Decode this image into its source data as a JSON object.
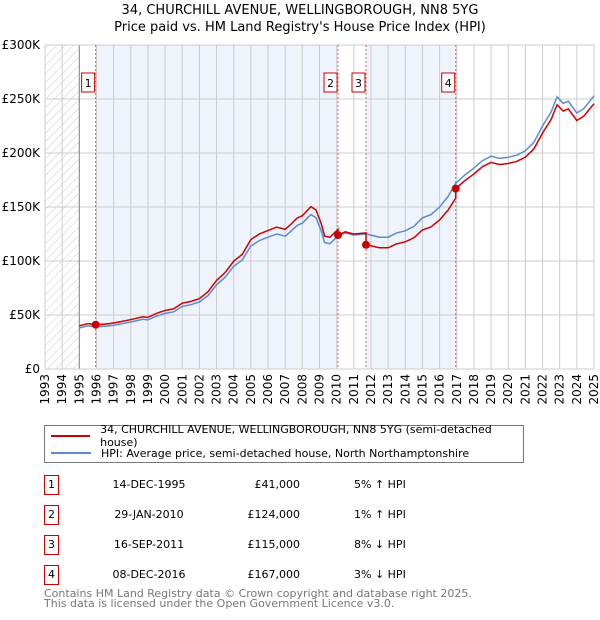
{
  "chart_data": {
    "type": "line",
    "title": "34, CHURCHILL AVENUE, WELLINGBOROUGH, NN8 5YG",
    "subtitle": "Price paid vs. HM Land Registry's House Price Index (HPI)",
    "xlim": [
      1993,
      2025
    ],
    "ylim": [
      0,
      300000
    ],
    "x_ticks": [
      "1993",
      "1994",
      "1995",
      "1996",
      "1997",
      "1998",
      "1999",
      "2000",
      "2001",
      "2002",
      "2003",
      "2004",
      "2005",
      "2006",
      "2007",
      "2008",
      "2009",
      "2010",
      "2011",
      "2012",
      "2013",
      "2014",
      "2015",
      "2016",
      "2017",
      "2018",
      "2019",
      "2020",
      "2021",
      "2022",
      "2023",
      "2024",
      "2025"
    ],
    "y_ticks": [
      {
        "v": 0,
        "label": "£0"
      },
      {
        "v": 50000,
        "label": "£50K"
      },
      {
        "v": 100000,
        "label": "£100K"
      },
      {
        "v": 150000,
        "label": "£150K"
      },
      {
        "v": 200000,
        "label": "£200K"
      },
      {
        "v": 250000,
        "label": "£250K"
      },
      {
        "v": 300000,
        "label": "£300K"
      }
    ],
    "grid": true,
    "hatched_range": [
      1993,
      1995
    ],
    "shaded_ranges": [
      [
        1995.95,
        2010.08
      ],
      [
        2011.71,
        2016.94
      ]
    ],
    "colors": {
      "property": "#cc0000",
      "hpi": "#5b8bd0",
      "shade": "#eef3fc"
    },
    "series": [
      {
        "name": "HPI: Average price, semi-detached house, North Northamptonshire",
        "color": "#5b8bd0",
        "points": [
          [
            1995,
            38000
          ],
          [
            1995.5,
            40000
          ],
          [
            1995.95,
            39000
          ],
          [
            1996.5,
            39500
          ],
          [
            1997,
            40500
          ],
          [
            1997.5,
            42000
          ],
          [
            1998,
            43500
          ],
          [
            1998.7,
            46000
          ],
          [
            1999,
            45500
          ],
          [
            1999.5,
            49000
          ],
          [
            2000,
            51500
          ],
          [
            2000.5,
            53000
          ],
          [
            2001,
            58000
          ],
          [
            2001.5,
            59500
          ],
          [
            2002,
            62000
          ],
          [
            2002.5,
            68000
          ],
          [
            2003,
            78000
          ],
          [
            2003.5,
            85000
          ],
          [
            2004,
            95000
          ],
          [
            2004.5,
            101000
          ],
          [
            2005,
            114000
          ],
          [
            2005.5,
            119000
          ],
          [
            2006,
            122000
          ],
          [
            2006.5,
            125000
          ],
          [
            2007,
            123000
          ],
          [
            2007.3,
            127000
          ],
          [
            2007.7,
            133000
          ],
          [
            2008,
            135000
          ],
          [
            2008.5,
            143000
          ],
          [
            2008.8,
            140000
          ],
          [
            2009.1,
            128000
          ],
          [
            2009.3,
            117000
          ],
          [
            2009.6,
            116000
          ],
          [
            2010.08,
            123000
          ],
          [
            2010.5,
            126000
          ],
          [
            2011,
            124000
          ],
          [
            2011.71,
            125000
          ],
          [
            2012,
            124000
          ],
          [
            2012.5,
            122000
          ],
          [
            2013,
            122000
          ],
          [
            2013.5,
            126000
          ],
          [
            2014,
            128000
          ],
          [
            2014.5,
            132000
          ],
          [
            2015,
            140000
          ],
          [
            2015.5,
            143000
          ],
          [
            2016,
            150000
          ],
          [
            2016.5,
            160000
          ],
          [
            2016.94,
            172000
          ],
          [
            2017.5,
            180000
          ],
          [
            2018,
            186000
          ],
          [
            2018.5,
            193000
          ],
          [
            2019,
            197000
          ],
          [
            2019.5,
            195000
          ],
          [
            2020,
            196000
          ],
          [
            2020.5,
            198000
          ],
          [
            2021,
            202000
          ],
          [
            2021.5,
            210000
          ],
          [
            2022,
            225000
          ],
          [
            2022.5,
            238000
          ],
          [
            2022.85,
            252000
          ],
          [
            2023.2,
            246000
          ],
          [
            2023.5,
            248000
          ],
          [
            2024,
            237000
          ],
          [
            2024.4,
            241000
          ],
          [
            2025,
            253000
          ]
        ]
      },
      {
        "name": "34, CHURCHILL AVENUE, WELLINGBOROUGH, NN8 5YG (semi-detached house)",
        "color": "#cc0000",
        "derived_from": "hpi indexed to sale prices"
      }
    ],
    "sales": [
      {
        "n": "1",
        "date": "14-DEC-1995",
        "x": 1995.95,
        "price": 41000,
        "price_label": "£41,000",
        "hpi": "5% ↑ HPI"
      },
      {
        "n": "2",
        "date": "29-JAN-2010",
        "x": 2010.08,
        "price": 124000,
        "price_label": "£124,000",
        "hpi": "1% ↑ HPI"
      },
      {
        "n": "3",
        "date": "16-SEP-2011",
        "x": 2011.71,
        "price": 115000,
        "price_label": "£115,000",
        "hpi": "8% ↓ HPI"
      },
      {
        "n": "4",
        "date": "08-DEC-2016",
        "x": 2016.94,
        "price": 167000,
        "price_label": "£167,000",
        "hpi": "3% ↓ HPI"
      }
    ]
  },
  "legend": {
    "property": "34, CHURCHILL AVENUE, WELLINGBOROUGH, NN8 5YG (semi-detached house)",
    "hpi": "HPI: Average price, semi-detached house, North Northamptonshire"
  },
  "footer": {
    "line1": "Contains HM Land Registry data © Crown copyright and database right 2025.",
    "line2": "This data is licensed under the Open Government Licence v3.0."
  }
}
